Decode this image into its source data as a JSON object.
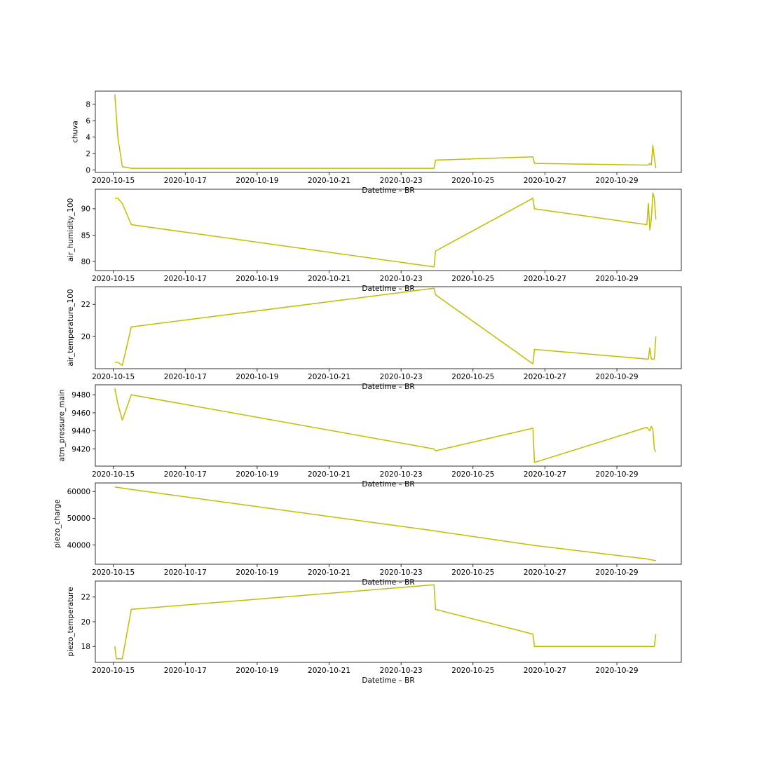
{
  "figure": {
    "line_color": "#bfbf00",
    "background": "#ffffff"
  },
  "chart_data": [
    {
      "type": "line",
      "ylabel": "chuva",
      "xlabel": "Datetime – BR",
      "xlim": [
        "2020-10-14T12:00",
        "2020-10-30T19:00"
      ],
      "ylim": [
        -0.3,
        9.6
      ],
      "yticks": [
        0,
        2,
        4,
        6,
        8
      ],
      "xticks": [
        "2020-10-15",
        "2020-10-17",
        "2020-10-19",
        "2020-10-21",
        "2020-10-23",
        "2020-10-25",
        "2020-10-27",
        "2020-10-29"
      ],
      "series": [
        {
          "x": [
            "2020-10-15T01:00",
            "2020-10-15T03:00",
            "2020-10-15T06:00",
            "2020-10-15T12:00",
            "2020-10-23T22:00",
            "2020-10-23T23:00",
            "2020-10-26T16:00",
            "2020-10-26T17:00",
            "2020-10-29T20:00",
            "2020-10-29T21:00",
            "2020-10-29T22:00",
            "2020-10-29T23:00",
            "2020-10-30T00:00",
            "2020-10-30T01:00",
            "2020-10-30T02:00"
          ],
          "y": [
            9.2,
            4.0,
            0.4,
            0.2,
            0.2,
            1.2,
            1.6,
            0.8,
            0.6,
            0.6,
            0.8,
            0.6,
            3.0,
            1.5,
            0.2
          ]
        }
      ]
    },
    {
      "type": "line",
      "ylabel": "air_humidity_100",
      "xlabel": "Datetime – BR",
      "xlim": [
        "2020-10-14T12:00",
        "2020-10-30T19:00"
      ],
      "ylim": [
        78.3,
        93.7
      ],
      "yticks": [
        80,
        85,
        90
      ],
      "xticks": [
        "2020-10-15",
        "2020-10-17",
        "2020-10-19",
        "2020-10-21",
        "2020-10-23",
        "2020-10-25",
        "2020-10-27",
        "2020-10-29"
      ],
      "series": [
        {
          "x": [
            "2020-10-15T01:00",
            "2020-10-15T03:00",
            "2020-10-15T06:00",
            "2020-10-15T12:00",
            "2020-10-23T22:00",
            "2020-10-23T23:00",
            "2020-10-26T16:00",
            "2020-10-26T17:00",
            "2020-10-29T20:00",
            "2020-10-29T21:00",
            "2020-10-29T22:00",
            "2020-10-29T23:00",
            "2020-10-30T00:00",
            "2020-10-30T01:00",
            "2020-10-30T02:00"
          ],
          "y": [
            92.0,
            92.0,
            91.0,
            87.0,
            79.0,
            82.0,
            92.0,
            90.0,
            87.0,
            91.0,
            86.0,
            88.0,
            93.0,
            92.0,
            88.0
          ]
        }
      ]
    },
    {
      "type": "line",
      "ylabel": "air_temperature_100",
      "xlabel": "Datetime – BR",
      "xlim": [
        "2020-10-14T12:00",
        "2020-10-30T19:00"
      ],
      "ylim": [
        18.0,
        23.1
      ],
      "yticks": [
        20,
        22
      ],
      "xticks": [
        "2020-10-15",
        "2020-10-17",
        "2020-10-19",
        "2020-10-21",
        "2020-10-23",
        "2020-10-25",
        "2020-10-27",
        "2020-10-29"
      ],
      "series": [
        {
          "x": [
            "2020-10-15T01:00",
            "2020-10-15T03:00",
            "2020-10-15T06:00",
            "2020-10-15T12:00",
            "2020-10-23T22:00",
            "2020-10-23T23:00",
            "2020-10-26T16:00",
            "2020-10-26T17:00",
            "2020-10-29T20:00",
            "2020-10-29T21:00",
            "2020-10-29T22:00",
            "2020-10-29T23:00",
            "2020-10-30T00:00",
            "2020-10-30T01:00",
            "2020-10-30T02:00"
          ],
          "y": [
            18.4,
            18.4,
            18.2,
            20.6,
            23.0,
            22.6,
            18.3,
            19.2,
            18.6,
            18.6,
            19.3,
            18.6,
            18.6,
            18.6,
            20.0
          ]
        }
      ]
    },
    {
      "type": "line",
      "ylabel": "atm_pressure_main",
      "xlabel": "Datetime – BR",
      "xlim": [
        "2020-10-14T12:00",
        "2020-10-30T19:00"
      ],
      "ylim": [
        9401,
        9491
      ],
      "yticks": [
        9420,
        9440,
        9460,
        9480
      ],
      "xticks": [
        "2020-10-15",
        "2020-10-17",
        "2020-10-19",
        "2020-10-21",
        "2020-10-23",
        "2020-10-25",
        "2020-10-27",
        "2020-10-29"
      ],
      "series": [
        {
          "x": [
            "2020-10-15T01:00",
            "2020-10-15T03:00",
            "2020-10-15T06:00",
            "2020-10-15T12:00",
            "2020-10-23T22:00",
            "2020-10-23T23:00",
            "2020-10-26T16:00",
            "2020-10-26T17:00",
            "2020-10-29T20:00",
            "2020-10-29T21:00",
            "2020-10-29T22:00",
            "2020-10-29T23:00",
            "2020-10-30T00:00",
            "2020-10-30T01:00",
            "2020-10-30T02:00"
          ],
          "y": [
            9487,
            9470,
            9452,
            9480,
            9420,
            9418,
            9443,
            9405,
            9444,
            9442,
            9440,
            9445,
            9442,
            9420,
            9417
          ]
        }
      ]
    },
    {
      "type": "line",
      "ylabel": "piezo_charge",
      "xlabel": "Datetime – BR",
      "xlim": [
        "2020-10-14T12:00",
        "2020-10-30T19:00"
      ],
      "ylim": [
        32800,
        63200
      ],
      "yticks": [
        40000,
        50000,
        60000
      ],
      "xticks": [
        "2020-10-15",
        "2020-10-17",
        "2020-10-19",
        "2020-10-21",
        "2020-10-23",
        "2020-10-25",
        "2020-10-27",
        "2020-10-29"
      ],
      "series": [
        {
          "x": [
            "2020-10-15T01:00",
            "2020-10-15T12:00",
            "2020-10-23T22:00",
            "2020-10-26T16:00",
            "2020-10-29T20:00",
            "2020-10-30T02:00"
          ],
          "y": [
            61700,
            60800,
            45300,
            39900,
            34800,
            34100
          ]
        }
      ]
    },
    {
      "type": "line",
      "ylabel": "piezo_temperature",
      "xlabel": "Datetime – BR",
      "xlim": [
        "2020-10-14T12:00",
        "2020-10-30T19:00"
      ],
      "ylim": [
        16.7,
        23.3
      ],
      "yticks": [
        18,
        20,
        22
      ],
      "xticks": [
        "2020-10-15",
        "2020-10-17",
        "2020-10-19",
        "2020-10-21",
        "2020-10-23",
        "2020-10-25",
        "2020-10-27",
        "2020-10-29"
      ],
      "series": [
        {
          "x": [
            "2020-10-15T01:00",
            "2020-10-15T02:00",
            "2020-10-15T06:00",
            "2020-10-15T12:00",
            "2020-10-23T22:00",
            "2020-10-23T23:00",
            "2020-10-26T16:00",
            "2020-10-26T17:00",
            "2020-10-29T20:00",
            "2020-10-30T01:00",
            "2020-10-30T02:00"
          ],
          "y": [
            18.0,
            17.0,
            17.0,
            21.0,
            23.0,
            21.0,
            19.0,
            18.0,
            18.0,
            18.0,
            19.0
          ]
        }
      ]
    }
  ]
}
